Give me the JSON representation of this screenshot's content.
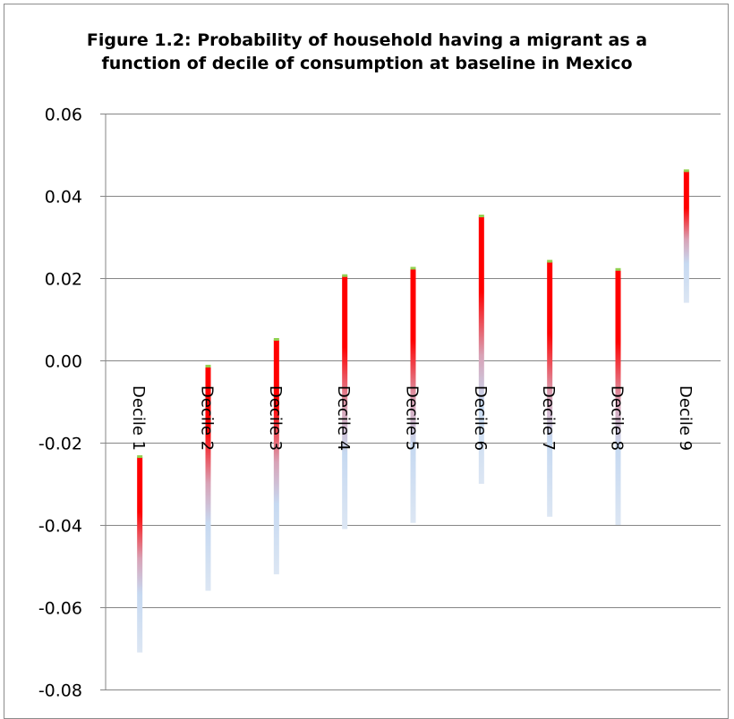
{
  "chart_data": {
    "type": "bar",
    "title_lines": [
      "Figure 1.2: Probability of household having a migrant as a",
      "function of decile of consumption at baseline in Mexico"
    ],
    "categories": [
      "Decile 1",
      "Decile 2",
      "Decile 3",
      "Decile 4",
      "Decile 5",
      "Decile 6",
      "Decile 7",
      "Decile 8",
      "Decile 9"
    ],
    "series": [
      {
        "high": [
          -0.0235,
          -0.0015,
          0.005,
          0.0205,
          0.0223,
          0.035,
          0.024,
          0.022,
          0.046
        ],
        "low": [
          -0.071,
          -0.056,
          -0.052,
          -0.041,
          -0.0395,
          -0.03,
          -0.038,
          -0.04,
          0.014
        ]
      }
    ],
    "ylim": [
      -0.08,
      0.06
    ],
    "yticks": [
      "0.06",
      "0.04",
      "0.02",
      "0.00",
      "-0.02",
      "-0.04",
      "-0.06",
      "-0.08"
    ],
    "ytick_values": [
      0.06,
      0.04,
      0.02,
      0.0,
      -0.02,
      -0.04,
      -0.06,
      -0.08
    ],
    "grid": true,
    "colors": {
      "bar_top": "#ff0000",
      "bar_bottom": "#c6d9f1",
      "marker": "#92d050",
      "grid": "#868686"
    }
  }
}
